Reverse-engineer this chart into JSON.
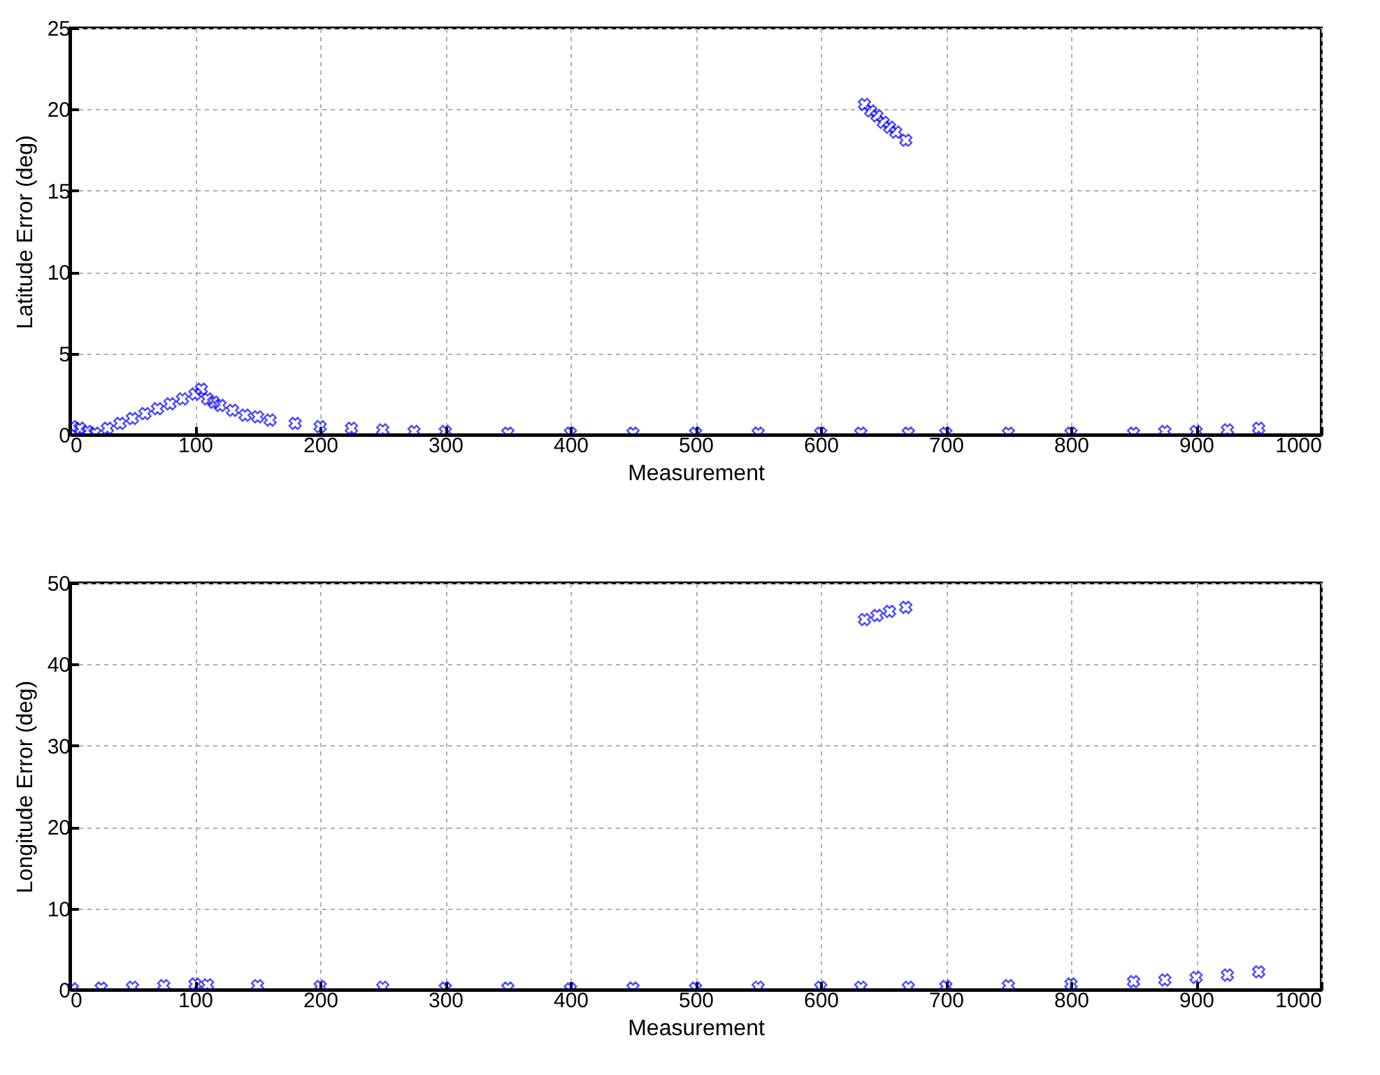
{
  "chart_data": [
    {
      "type": "scatter",
      "xlabel": "Measurement",
      "ylabel": "Latitude Error (deg)",
      "xlim": [
        0,
        1000
      ],
      "ylim": [
        0,
        25
      ],
      "xticks": [
        0,
        100,
        200,
        300,
        400,
        500,
        600,
        700,
        800,
        900,
        1000
      ],
      "yticks": [
        0,
        5,
        10,
        15,
        20,
        25
      ],
      "grid": true,
      "marker": "cross",
      "series": [
        {
          "color": "#0000ff",
          "x": [
            2,
            8,
            14,
            20,
            30,
            40,
            50,
            60,
            70,
            80,
            90,
            100,
            105,
            110,
            115,
            120,
            130,
            140,
            150,
            160,
            180,
            200,
            225,
            250,
            275,
            300,
            350,
            400,
            450,
            500,
            550,
            600,
            632,
            635,
            640,
            645,
            650,
            655,
            660,
            668,
            670,
            700,
            750,
            800,
            850,
            875,
            900,
            925,
            950
          ],
          "values": [
            0.5,
            0.4,
            0.2,
            0.1,
            0.4,
            0.7,
            1.0,
            1.3,
            1.6,
            1.9,
            2.2,
            2.5,
            2.8,
            2.2,
            2.0,
            1.8,
            1.5,
            1.2,
            1.1,
            0.9,
            0.7,
            0.5,
            0.4,
            0.3,
            0.2,
            0.2,
            0.1,
            0.1,
            0.1,
            0.1,
            0.1,
            0.1,
            0.1,
            20.3,
            19.9,
            19.6,
            19.2,
            18.9,
            18.6,
            18.1,
            0.1,
            0.1,
            0.1,
            0.1,
            0.1,
            0.2,
            0.2,
            0.3,
            0.4
          ]
        }
      ]
    },
    {
      "type": "scatter",
      "xlabel": "Measurement",
      "ylabel": "Longitude Error (deg)",
      "xlim": [
        0,
        1000
      ],
      "ylim": [
        0,
        50
      ],
      "xticks": [
        0,
        100,
        200,
        300,
        400,
        500,
        600,
        700,
        800,
        900,
        1000
      ],
      "yticks": [
        0,
        10,
        20,
        30,
        40,
        50
      ],
      "grid": true,
      "marker": "cross",
      "series": [
        {
          "color": "#0000ff",
          "x": [
            2,
            25,
            50,
            75,
            100,
            110,
            150,
            200,
            250,
            300,
            350,
            400,
            450,
            500,
            550,
            600,
            632,
            635,
            645,
            655,
            668,
            670,
            700,
            750,
            800,
            850,
            875,
            900,
            925,
            950
          ],
          "values": [
            0.1,
            0.2,
            0.3,
            0.5,
            0.7,
            0.6,
            0.5,
            0.4,
            0.3,
            0.2,
            0.2,
            0.1,
            0.2,
            0.2,
            0.3,
            0.3,
            0.3,
            45.5,
            46.0,
            46.5,
            47.0,
            0.3,
            0.4,
            0.5,
            0.7,
            1.0,
            1.2,
            1.5,
            1.8,
            2.2
          ]
        }
      ]
    }
  ]
}
